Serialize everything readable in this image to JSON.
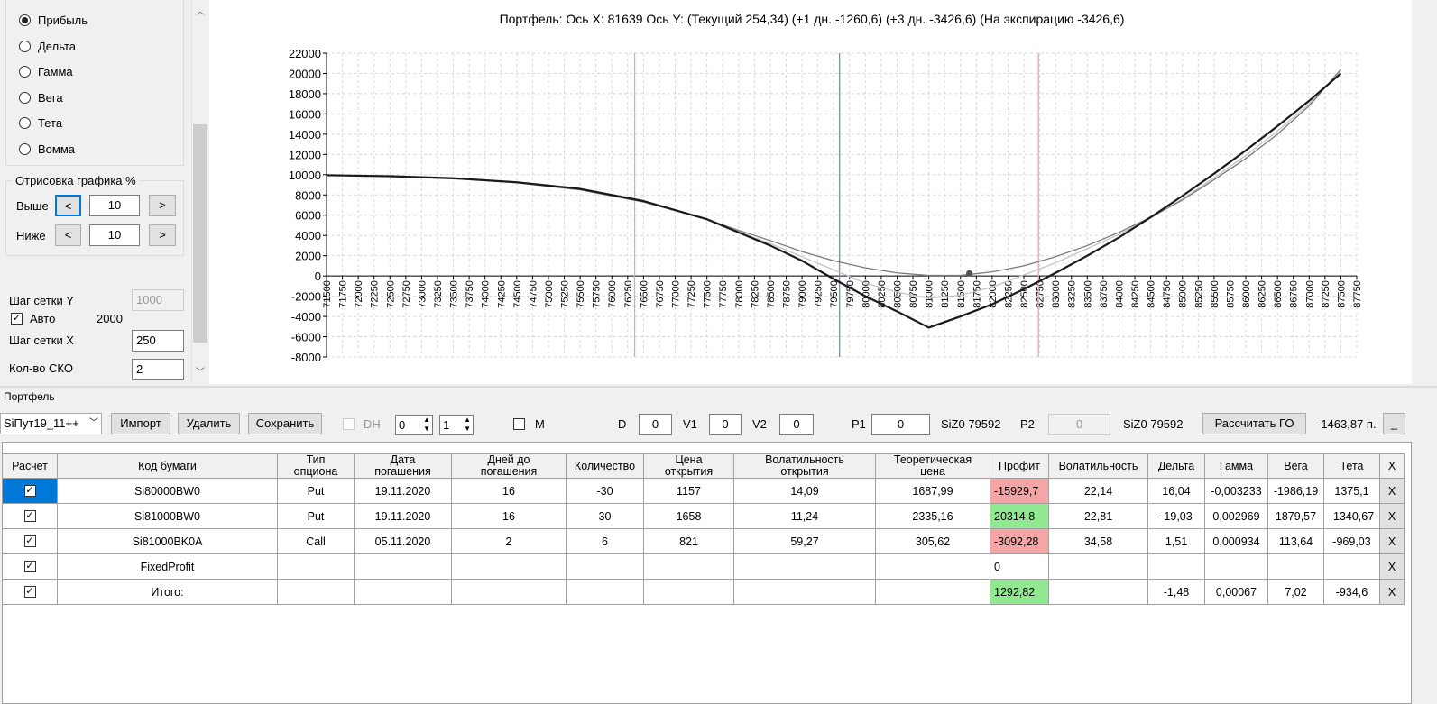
{
  "chart_data": {
    "type": "line",
    "title": "Портфель: Ось X: 81639 Ось Y:  (Текущий 254,34)  (+1 дн. -1260,6)  (+3 дн. -3426,6)  (На экспирацию -3426,6)",
    "xlim": [
      71500,
      87750
    ],
    "ylim": [
      -8000,
      22000
    ],
    "xticks": [
      71500,
      71750,
      72000,
      72250,
      72500,
      72750,
      73000,
      73250,
      73500,
      73750,
      74000,
      74250,
      74500,
      74750,
      75000,
      75250,
      75500,
      75750,
      76000,
      76250,
      76500,
      76750,
      77000,
      77250,
      77500,
      77750,
      78000,
      78250,
      78500,
      78750,
      79000,
      79250,
      79500,
      79750,
      80000,
      80250,
      80500,
      80750,
      81000,
      81250,
      81500,
      81750,
      82000,
      82250,
      82500,
      82750,
      83000,
      83250,
      83500,
      83750,
      84000,
      84250,
      84500,
      84750,
      85000,
      85250,
      85500,
      85750,
      86000,
      86250,
      86500,
      86750,
      87000,
      87250,
      87500,
      87750
    ],
    "yticks": [
      -8000,
      -6000,
      -4000,
      -2000,
      0,
      2000,
      4000,
      6000,
      8000,
      10000,
      12000,
      14000,
      16000,
      18000,
      20000,
      22000
    ],
    "grid": true,
    "series": [
      {
        "color": "#c4c4c4",
        "width": 1.3,
        "x": [
          71500,
          72500,
          73500,
          74500,
          75500,
          76500,
          77500,
          78000,
          78500,
          79000,
          79500,
          80000,
          80500,
          81000,
          81500,
          82000,
          82500,
          83000,
          83500,
          84000,
          84500,
          85000,
          85500,
          86000,
          86500,
          87000,
          87500
        ],
        "values": [
          9950,
          9850,
          9650,
          9250,
          8600,
          7350,
          5550,
          4350,
          3200,
          1900,
          600,
          -700,
          -1600,
          -2200,
          -1900,
          -1100,
          100,
          1300,
          2700,
          4100,
          5700,
          7600,
          9700,
          11900,
          14300,
          17000,
          20200
        ]
      },
      {
        "color": "#7a7a7a",
        "width": 1.3,
        "x": [
          71500,
          72500,
          73500,
          74500,
          75500,
          76500,
          77500,
          78000,
          78500,
          79000,
          79500,
          80000,
          80500,
          81000,
          81500,
          82000,
          82500,
          83000,
          83500,
          84000,
          84500,
          85000,
          85500,
          86000,
          86500,
          87000,
          87500
        ],
        "values": [
          9950,
          9850,
          9600,
          9200,
          8500,
          7300,
          5600,
          4500,
          3500,
          2400,
          1500,
          800,
          300,
          50,
          50,
          400,
          1000,
          1900,
          3000,
          4300,
          5800,
          7500,
          9500,
          11600,
          14000,
          16800,
          20400
        ]
      },
      {
        "color": "#1a1a1a",
        "width": 2.2,
        "x": [
          71500,
          72500,
          73500,
          74500,
          75500,
          76500,
          77500,
          78000,
          78500,
          79000,
          79500,
          80000,
          80500,
          81000,
          81500,
          82000,
          82500,
          83000,
          83500,
          84000,
          84500,
          85000,
          85500,
          86000,
          86500,
          87000,
          87500
        ],
        "values": [
          9950,
          9850,
          9650,
          9250,
          8600,
          7400,
          5600,
          4300,
          3000,
          1500,
          -300,
          -2000,
          -3500,
          -5100,
          -4000,
          -2800,
          -1300,
          300,
          2000,
          3800,
          5800,
          7900,
          10100,
          12400,
          14800,
          17300,
          20000
        ]
      }
    ],
    "vlines": [
      {
        "value": 76360,
        "color": "#f4a0a8"
      },
      {
        "value": 79592,
        "color": "#7d8fa0"
      },
      {
        "value": 82730,
        "color": "#f4a0a8"
      }
    ],
    "point": {
      "x": 81639,
      "y": 254.34,
      "color": "#555555"
    }
  },
  "left_panel": {
    "radio_options": [
      "Прибыль",
      "Дельта",
      "Гамма",
      "Вега",
      "Тета",
      "Вомма"
    ],
    "draw_group": "Отрисовка графика %",
    "above_label": "Выше",
    "above_value": "10",
    "below_label": "Ниже",
    "below_value": "10",
    "prev": "<",
    "next": ">",
    "grid_y_label": "Шаг сетки Y",
    "grid_y_value": "1000",
    "auto_label": "Авто",
    "auto_value": "2000",
    "grid_x_label": "Шаг сетки X",
    "grid_x_value": "250",
    "sko_label": "Кол-во СКО",
    "sko_value": "2"
  },
  "toolbar": {
    "group": "Портфель",
    "combo": "SiПут19_11++",
    "import": "Импорт",
    "delete": "Удалить",
    "save": "Сохранить",
    "dh": "DH",
    "spin1": "0",
    "spin2": "1",
    "m": "M",
    "d_label": "D",
    "d_value": "0",
    "v1_label": "V1",
    "v1_value": "0",
    "v2_label": "V2",
    "v2_value": "0",
    "p1_label": "P1",
    "p1_value": "0",
    "p1_ticker": "SiZ0 79592",
    "p2_label": "P2",
    "p2_value": "0",
    "p2_ticker": "SiZ0 79592",
    "calc": "Рассчитать ГО",
    "go": "-1463,87 п.",
    "minimize": "_"
  },
  "table": {
    "headers": [
      "Расчет",
      "Код бумаги",
      "Тип\nопциона",
      "Дата\nпогашения",
      "Дней до\nпогашения",
      "Количество",
      "Цена\nоткрытия",
      "Волатильность\nоткрытия",
      "Теоретическая\nцена",
      "Профит",
      "Волатильность",
      "Дельта",
      "Гамма",
      "Вега",
      "Тета",
      "X"
    ],
    "rows": [
      [
        "Si80000BW0",
        "Put",
        "19.11.2020",
        "16",
        "-30",
        "1157",
        "14,09",
        "1687,99",
        "-15929,7",
        "22,14",
        "16,04",
        "-0,003233",
        "-1986,19",
        "1375,1",
        "X"
      ],
      [
        "Si81000BW0",
        "Put",
        "19.11.2020",
        "16",
        "30",
        "1658",
        "11,24",
        "2335,16",
        "20314,8",
        "22,81",
        "-19,03",
        "0,002969",
        "1879,57",
        "-1340,67",
        "X"
      ],
      [
        "Si81000BK0A",
        "Call",
        "05.11.2020",
        "2",
        "6",
        "821",
        "59,27",
        "305,62",
        "-3092,28",
        "34,58",
        "1,51",
        "0,000934",
        "113,64",
        "-969,03",
        "X"
      ],
      [
        "FixedProfit",
        null,
        null,
        null,
        null,
        null,
        null,
        null,
        "0",
        null,
        null,
        null,
        null,
        null,
        "X"
      ],
      [
        "Итого:",
        null,
        null,
        null,
        null,
        null,
        null,
        null,
        "1292,82",
        null,
        "-1,48",
        "0,00067",
        "7,02",
        "-934,6",
        "X"
      ]
    ],
    "profit_colors": [
      "#f4a6a6",
      "#90e890",
      "#f4a6a6",
      null,
      "#90e890"
    ]
  }
}
